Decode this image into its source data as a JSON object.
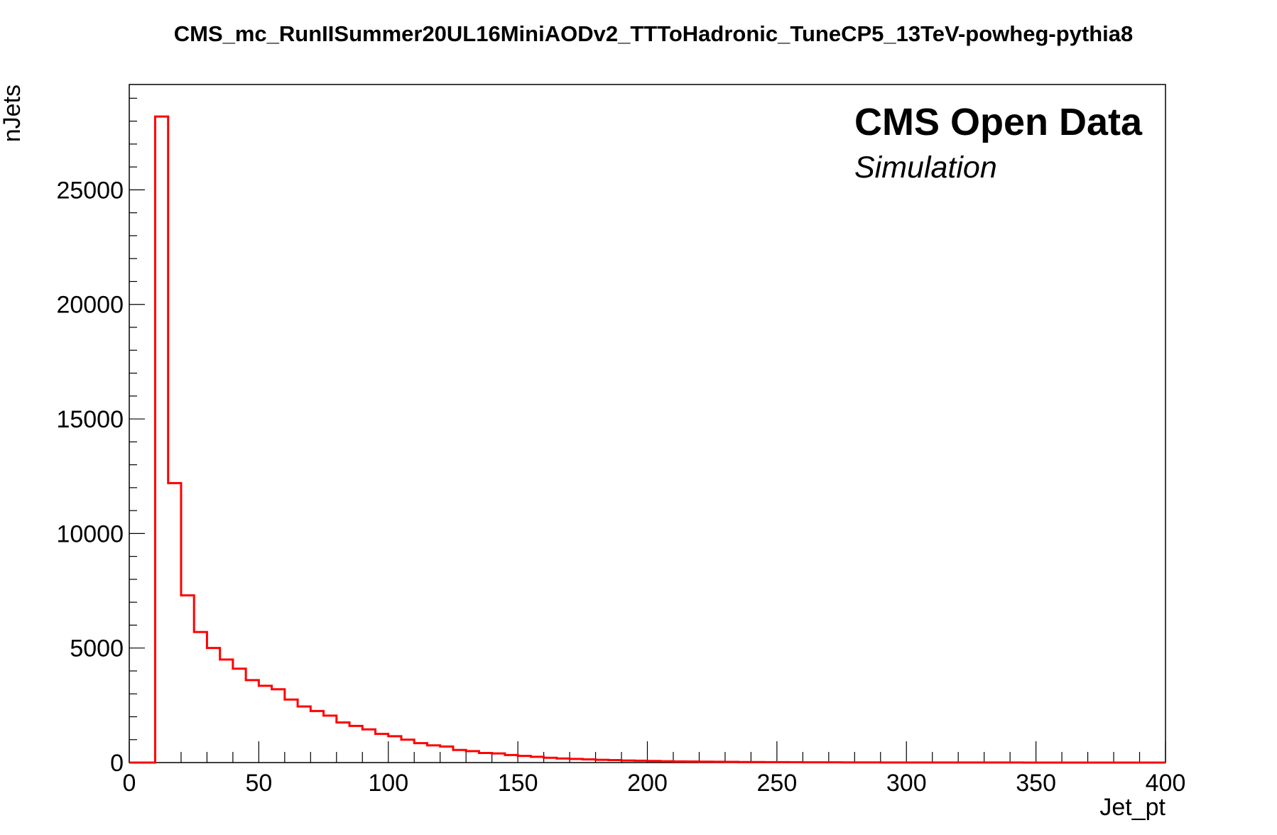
{
  "chart_data": {
    "type": "bar",
    "histogram": true,
    "title": "CMS_mc_RunIISummer20UL16MiniAODv2_TTToHadronic_TuneCP5_13TeV-powheg-pythia8",
    "xlabel": "Jet_pt",
    "ylabel": "nJets",
    "annotations": [
      "CMS Open Data",
      "Simulation"
    ],
    "xlim": [
      0,
      400
    ],
    "ylim": [
      0,
      29600
    ],
    "xticks": [
      0,
      50,
      100,
      150,
      200,
      250,
      300,
      350,
      400
    ],
    "yticks": [
      0,
      5000,
      10000,
      15000,
      20000,
      25000
    ],
    "bin_width": 5,
    "bin_edges_start": 0,
    "values": [
      0,
      0,
      28200,
      12200,
      7300,
      5700,
      5000,
      4500,
      4100,
      3600,
      3350,
      3200,
      2750,
      2450,
      2250,
      2050,
      1750,
      1600,
      1450,
      1250,
      1150,
      1000,
      850,
      750,
      700,
      550,
      500,
      420,
      400,
      330,
      290,
      250,
      210,
      180,
      160,
      140,
      120,
      110,
      90,
      80,
      70,
      60,
      50,
      45,
      40,
      35,
      30,
      25,
      22,
      20,
      18,
      15,
      13,
      11,
      10,
      8,
      7,
      6,
      5,
      5,
      4,
      4,
      3,
      3,
      3,
      2,
      2,
      2,
      2,
      1,
      1,
      1,
      1,
      1,
      1,
      1,
      1,
      1,
      1,
      1
    ],
    "line_color": "#ff0000",
    "grid": false
  }
}
